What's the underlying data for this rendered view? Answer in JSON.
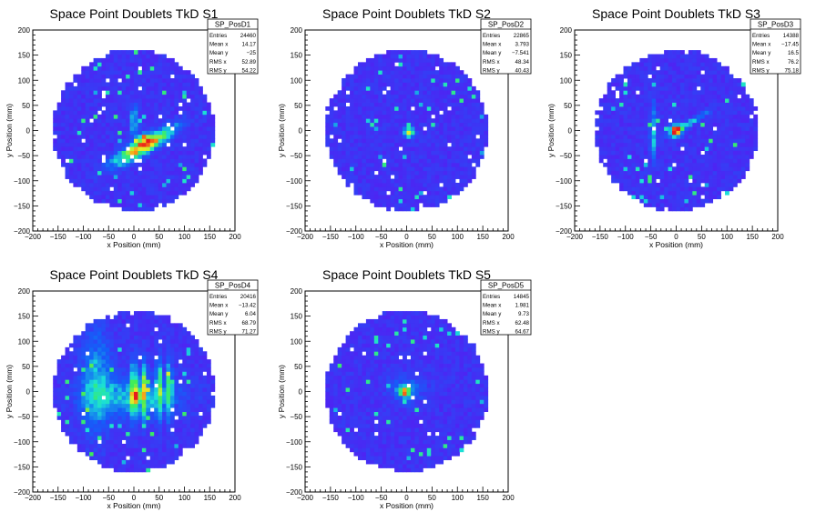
{
  "colors": {
    "background": "#ffffff",
    "axis": "#000000",
    "hist_low": "#5a18f2",
    "hist_mid": "#1ae0d8",
    "hist_high": "#e81c1c"
  },
  "chart_data": [
    {
      "type": "heatmap",
      "title": "Space Point Doublets TkD S1",
      "xlabel": "x Position (mm)",
      "ylabel": "y Position (mm)",
      "xlim": [
        -200,
        200
      ],
      "ylim": [
        -200,
        200
      ],
      "xticks": [
        -200,
        -150,
        -100,
        -50,
        0,
        50,
        100,
        150,
        200
      ],
      "yticks": [
        -200,
        -150,
        -100,
        -50,
        0,
        50,
        100,
        150,
        200
      ],
      "acceptance_radius_mm": 160,
      "stats": {
        "name": "SP_PosD1",
        "rows": [
          {
            "label": "Entries",
            "value": "24460"
          },
          {
            "label": "Mean x",
            "value": "14.17"
          },
          {
            "label": "Mean y",
            "value": "−25"
          },
          {
            "label": "RMS x",
            "value": "52.89"
          },
          {
            "label": "RMS y",
            "value": "54.22"
          }
        ]
      },
      "hotspots": [
        {
          "x": 20,
          "y": -30,
          "sx": 45,
          "sy": 10,
          "angle_deg": 30,
          "amp": 0.75
        },
        {
          "x": 20,
          "y": -20,
          "sx": 12,
          "sy": 10,
          "angle_deg": 0,
          "amp": 0.3
        },
        {
          "x": 0,
          "y": 20,
          "sx": 5,
          "sy": 22,
          "angle_deg": 0,
          "amp": 0.3
        }
      ]
    },
    {
      "type": "heatmap",
      "title": "Space Point Doublets TkD S2",
      "xlabel": "x Position (mm)",
      "ylabel": "y Position (mm)",
      "xlim": [
        -200,
        200
      ],
      "ylim": [
        -200,
        200
      ],
      "xticks": [
        -200,
        -150,
        -100,
        -50,
        0,
        50,
        100,
        150,
        200
      ],
      "yticks": [
        -200,
        -150,
        -100,
        -50,
        0,
        50,
        100,
        150,
        200
      ],
      "acceptance_radius_mm": 160,
      "stats": {
        "name": "SP_PosD2",
        "rows": [
          {
            "label": "Entries",
            "value": "22865"
          },
          {
            "label": "Mean x",
            "value": "3.793"
          },
          {
            "label": "Mean y",
            "value": "−7.541"
          },
          {
            "label": "RMS x",
            "value": "48.34"
          },
          {
            "label": "RMS y",
            "value": "40.43"
          }
        ]
      },
      "hotspots": [
        {
          "x": 5,
          "y": -3,
          "sx": 6,
          "sy": 6,
          "angle_deg": 0,
          "amp": 0.9
        }
      ]
    },
    {
      "type": "heatmap",
      "title": "Space Point Doublets TkD S3",
      "xlabel": "x Position (mm)",
      "ylabel": "y Position (mm)",
      "xlim": [
        -200,
        200
      ],
      "ylim": [
        -200,
        200
      ],
      "xticks": [
        -200,
        -150,
        -100,
        -50,
        0,
        50,
        100,
        150,
        200
      ],
      "yticks": [
        -200,
        -150,
        -100,
        -50,
        0,
        50,
        100,
        150,
        200
      ],
      "acceptance_radius_mm": 160,
      "stats": {
        "name": "SP_PosD3",
        "rows": [
          {
            "label": "Entries",
            "value": "14388"
          },
          {
            "label": "Mean x",
            "value": "−17.45"
          },
          {
            "label": "Mean y",
            "value": "16.5"
          },
          {
            "label": "RMS x",
            "value": "76.2"
          },
          {
            "label": "RMS y",
            "value": "75.18"
          }
        ]
      },
      "hotspots": [
        {
          "x": 0,
          "y": 0,
          "sx": 8,
          "sy": 8,
          "angle_deg": 0,
          "amp": 0.9
        },
        {
          "x": 25,
          "y": 15,
          "sx": 30,
          "sy": 4,
          "angle_deg": 30,
          "amp": 0.3
        },
        {
          "x": -45,
          "y": -5,
          "sx": 4,
          "sy": 40,
          "angle_deg": 0,
          "amp": 0.28
        }
      ]
    },
    {
      "type": "heatmap",
      "title": "Space Point Doublets TkD S4",
      "xlabel": "x Position (mm)",
      "ylabel": "y Position (mm)",
      "xlim": [
        -200,
        200
      ],
      "ylim": [
        -200,
        200
      ],
      "xticks": [
        -200,
        -150,
        -100,
        -50,
        0,
        50,
        100,
        150,
        200
      ],
      "yticks": [
        -200,
        -150,
        -100,
        -50,
        0,
        50,
        100,
        150,
        200
      ],
      "acceptance_radius_mm": 160,
      "stats": {
        "name": "SP_PosD4",
        "rows": [
          {
            "label": "Entries",
            "value": "20416"
          },
          {
            "label": "Mean x",
            "value": "−13.42"
          },
          {
            "label": "Mean y",
            "value": "6.04"
          },
          {
            "label": "RMS x",
            "value": "68.79"
          },
          {
            "label": "RMS y",
            "value": "71.27"
          }
        ]
      },
      "hotspots": [
        {
          "x": 0,
          "y": -10,
          "sx": 60,
          "sy": 25,
          "angle_deg": 0,
          "amp": 0.3
        },
        {
          "x": 0,
          "y": 5,
          "sx": 4,
          "sy": 40,
          "angle_deg": 0,
          "amp": 0.5
        },
        {
          "x": 20,
          "y": 5,
          "sx": 4,
          "sy": 40,
          "angle_deg": 0,
          "amp": 0.45
        },
        {
          "x": 50,
          "y": 5,
          "sx": 4,
          "sy": 40,
          "angle_deg": 0,
          "amp": 0.45
        },
        {
          "x": 70,
          "y": 5,
          "sx": 4,
          "sy": 40,
          "angle_deg": 0,
          "amp": 0.4
        },
        {
          "x": -75,
          "y": 20,
          "sx": 20,
          "sy": 70,
          "angle_deg": 0,
          "amp": 0.25
        },
        {
          "x": 5,
          "y": -10,
          "sx": 6,
          "sy": 8,
          "angle_deg": 0,
          "amp": 0.5
        }
      ]
    },
    {
      "type": "heatmap",
      "title": "Space Point Doublets TkD S5",
      "xlabel": "x Position (mm)",
      "ylabel": "y Position (mm)",
      "xlim": [
        -200,
        200
      ],
      "ylim": [
        -200,
        200
      ],
      "xticks": [
        -200,
        -150,
        -100,
        -50,
        0,
        50,
        100,
        150,
        200
      ],
      "yticks": [
        -200,
        -150,
        -100,
        -50,
        0,
        50,
        100,
        150,
        200
      ],
      "acceptance_radius_mm": 160,
      "stats": {
        "name": "SP_PosD5",
        "rows": [
          {
            "label": "Entries",
            "value": "14845"
          },
          {
            "label": "Mean x",
            "value": "1.981"
          },
          {
            "label": "Mean y",
            "value": "9.73"
          },
          {
            "label": "RMS x",
            "value": "62.48"
          },
          {
            "label": "RMS y",
            "value": "64.67"
          }
        ]
      },
      "hotspots": [
        {
          "x": -5,
          "y": 0,
          "sx": 7,
          "sy": 6,
          "angle_deg": 0,
          "amp": 0.95
        },
        {
          "x": 0,
          "y": 5,
          "sx": 25,
          "sy": 20,
          "angle_deg": 0,
          "amp": 0.15
        }
      ]
    }
  ]
}
